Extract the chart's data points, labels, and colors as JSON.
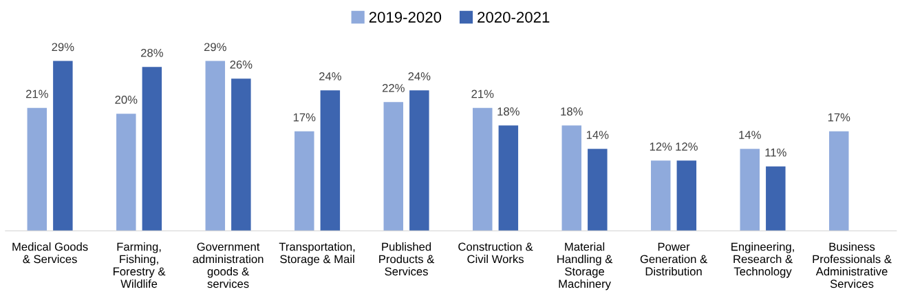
{
  "chart_data": {
    "type": "bar",
    "categories": [
      "Medical Goods\n& Services",
      "Farming,\nFishing,\nForestry &\nWildlife",
      "Government\nadministration\ngoods &\nservices",
      "Transportation,\nStorage & Mail",
      "Published\nProducts &\nServices",
      "Construction &\nCivil Works",
      "Material\nHandling &\nStorage\nMachinery",
      "Power\nGeneration &\nDistribution",
      "Engineering,\nResearch &\nTechnology",
      "Business\nProfessionals &\nAdministrative\nServices"
    ],
    "series": [
      {
        "name": "2019-2020",
        "color": "#8faadc",
        "values": [
          21,
          20,
          29,
          17,
          22,
          21,
          18,
          12,
          14,
          17
        ],
        "value_labels": [
          "21%",
          "20%",
          "29%",
          "17%",
          "22%",
          "21%",
          "18%",
          "12%",
          "14%",
          "17%"
        ]
      },
      {
        "name": "2020-2021",
        "color": "#3d65b0",
        "values": [
          29,
          28,
          26,
          24,
          24,
          18,
          14,
          12,
          11,
          null
        ],
        "value_labels": [
          "29%",
          "28%",
          "26%",
          "24%",
          "24%",
          "18%",
          "14%",
          "12%",
          "11%",
          null
        ]
      }
    ],
    "legend": "top"
  }
}
